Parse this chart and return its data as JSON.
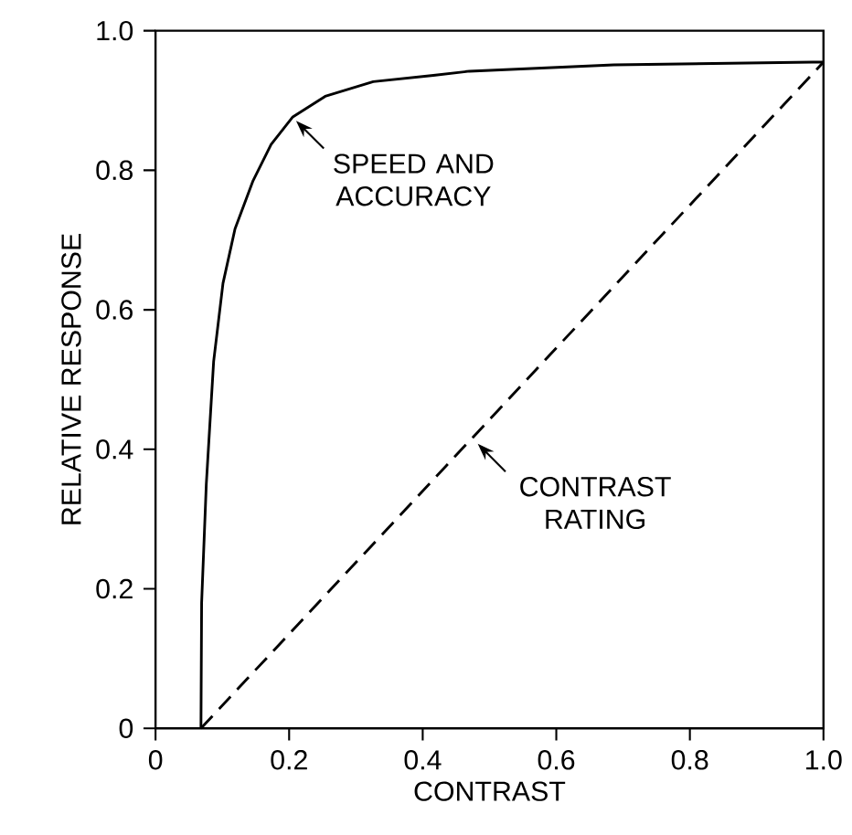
{
  "chart_data": {
    "type": "line",
    "xlabel": "CONTRAST",
    "ylabel": "RELATIVE RESPONSE",
    "xlim": [
      0,
      1
    ],
    "ylim": [
      0,
      1
    ],
    "xticks": [
      0,
      0.2,
      0.4,
      0.6,
      0.8,
      {
        "value": 1,
        "label": "1.0"
      }
    ],
    "yticks": [
      0,
      0.2,
      0.4,
      0.6,
      0.8,
      {
        "value": 1,
        "label": "1.0"
      }
    ],
    "marker": "none",
    "series": [
      {
        "color": "#000000",
        "line_style": "solid",
        "x": [
          0.068,
          0.069,
          0.076,
          0.087,
          0.101,
          0.119,
          0.146,
          0.173,
          0.205,
          0.254,
          0.326,
          0.416,
          0.47,
          0.686,
          0.984,
          1.0
        ],
        "values": [
          0,
          0.18,
          0.35,
          0.526,
          0.638,
          0.716,
          0.785,
          0.837,
          0.876,
          0.906,
          0.927,
          0.936,
          0.942,
          0.951,
          0.955,
          0.955
        ]
      },
      {
        "color": "#000000",
        "line_style": "dashed",
        "x": [
          0.068,
          1.0
        ],
        "values": [
          0,
          0.955
        ]
      }
    ],
    "annotations": [
      {
        "text": "SPEED AND ACCURACY",
        "x": 0.205,
        "y": 0.876
      },
      {
        "text": "CONTRAST RATING",
        "x": 0.477,
        "y": 0.413
      }
    ]
  }
}
